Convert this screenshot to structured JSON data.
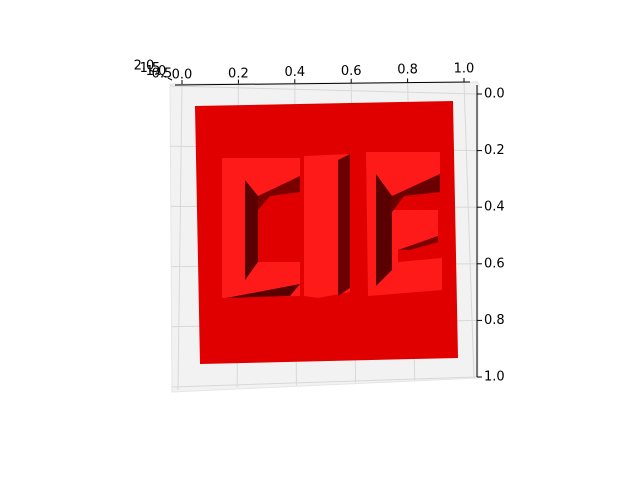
{
  "chart_data": {
    "type": "surface",
    "color": "#e00000",
    "grid": true,
    "xlim": [
      0,
      1
    ],
    "xticks": [
      {
        "value": 0,
        "label": "0.0"
      },
      0.2,
      0.4,
      0.6,
      0.8,
      {
        "value": 1,
        "label": "1.0"
      }
    ],
    "ylim": [
      0,
      1
    ],
    "yticks": [
      {
        "value": 0,
        "label": "0.0"
      },
      0.2,
      0.4,
      0.6,
      0.8,
      {
        "value": 1,
        "label": "1.0"
      }
    ],
    "zlim": [
      0.5,
      2
    ],
    "zticks": [
      0.5,
      {
        "value": 1,
        "label": "1.0"
      },
      1.5,
      {
        "value": 2,
        "label": "2.0"
      }
    ]
  }
}
